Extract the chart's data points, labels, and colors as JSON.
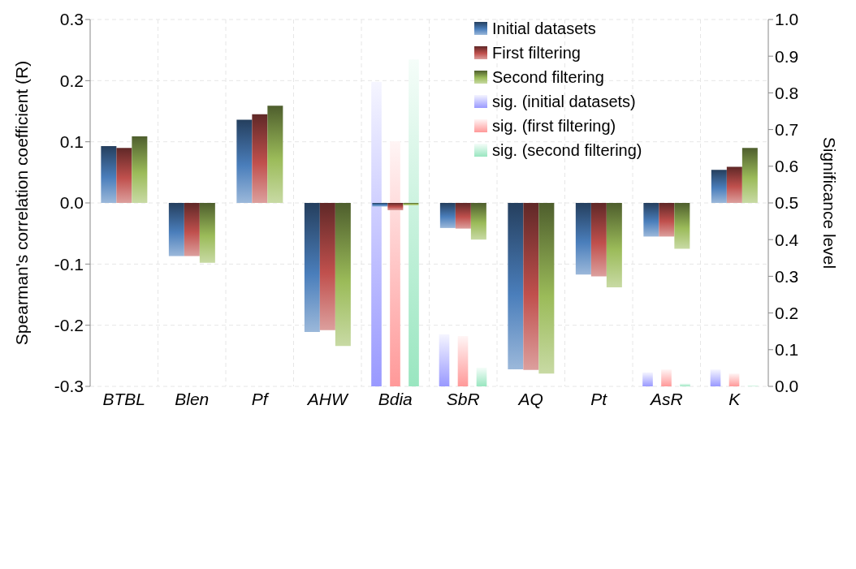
{
  "chart_data": {
    "type": "bar",
    "ylabel": "Spearman's correlation coefficient (R)",
    "y2label": "Significance level",
    "categories": [
      "BTBL",
      "Blen",
      "Pf",
      "AHW",
      "Bdia",
      "SbR",
      "AQ",
      "Pt",
      "AsR",
      "K"
    ],
    "series": [
      {
        "name": "Initial datasets",
        "color": "#4a7ebb",
        "values": [
          0.093,
          -0.087,
          0.136,
          -0.211,
          -0.006,
          -0.041,
          -0.272,
          -0.117,
          -0.055,
          0.054
        ]
      },
      {
        "name": "First filtering",
        "color": "#c0504d",
        "values": [
          0.09,
          -0.087,
          0.145,
          -0.208,
          -0.012,
          -0.042,
          -0.273,
          -0.12,
          -0.055,
          0.059
        ]
      },
      {
        "name": "Second filtering",
        "color": "#9bbb59",
        "values": [
          0.109,
          -0.098,
          0.159,
          -0.234,
          -0.004,
          -0.06,
          -0.279,
          -0.138,
          -0.075,
          0.09
        ]
      },
      {
        "name": "sig. (initial datasets)",
        "color": "#9999ff",
        "axis": "y2",
        "values": [
          0,
          0,
          0,
          0,
          0.83,
          0.142,
          0,
          0,
          0.038,
          0.046
        ]
      },
      {
        "name": "sig. (first filtering)",
        "color": "#ff9999",
        "axis": "y2",
        "values": [
          0,
          0,
          0,
          0,
          0.668,
          0.137,
          0,
          0,
          0.046,
          0.035
        ]
      },
      {
        "name": "sig. (second filtering)",
        "color": "#99e6c0",
        "axis": "y2",
        "values": [
          0,
          0,
          0,
          0,
          0.891,
          0.051,
          0,
          0,
          0.008,
          0.002
        ]
      }
    ],
    "ylim": [
      -0.3,
      0.3
    ],
    "yticks": [
      -0.3,
      -0.2,
      -0.1,
      {
        "value": 0,
        "label": "0.0"
      },
      0.1,
      0.2,
      0.3
    ],
    "y2lim": [
      0,
      1
    ],
    "y2ticks": [
      {
        "value": 0,
        "label": "0.0"
      },
      0.1,
      0.2,
      0.3,
      0.4,
      0.5,
      0.6,
      0.7,
      0.8,
      0.9,
      {
        "value": 1,
        "label": "1.0"
      }
    ],
    "grid": true,
    "legend": "top right"
  }
}
